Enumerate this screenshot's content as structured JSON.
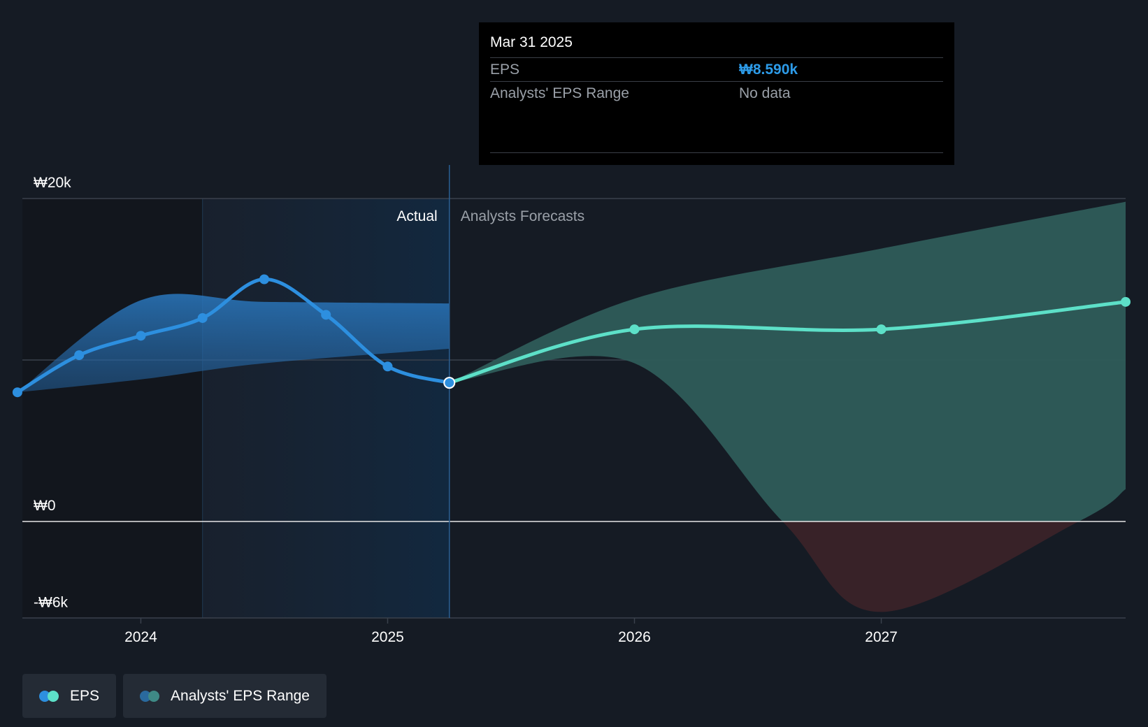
{
  "chart_data": {
    "type": "line",
    "y_tick_labels": [
      "₩20k",
      "₩0",
      "-₩6k"
    ],
    "x_tick_labels": [
      "2024",
      "2025",
      "2026",
      "2027"
    ],
    "ylim": [
      -6000,
      20000
    ],
    "x_range": [
      2023.52,
      2027.99
    ],
    "divider_x": 2025.25,
    "section_labels": {
      "actual": "Actual",
      "forecast": "Analysts Forecasts"
    },
    "series": [
      {
        "name": "EPS",
        "kind": "actual",
        "color": "#2d8fdf",
        "points": [
          {
            "x": 2023.5,
            "y": 8000
          },
          {
            "x": 2023.75,
            "y": 10300
          },
          {
            "x": 2024.0,
            "y": 11500
          },
          {
            "x": 2024.25,
            "y": 12600
          },
          {
            "x": 2024.5,
            "y": 15000
          },
          {
            "x": 2024.75,
            "y": 12800
          },
          {
            "x": 2025.0,
            "y": 9600
          },
          {
            "x": 2025.25,
            "y": 8590
          }
        ]
      },
      {
        "name": "EPS",
        "kind": "forecast",
        "color": "#5de0c8",
        "points": [
          {
            "x": 2025.25,
            "y": 8590
          },
          {
            "x": 2026.0,
            "y": 11900
          },
          {
            "x": 2027.0,
            "y": 11900
          },
          {
            "x": 2027.99,
            "y": 13600
          }
        ]
      }
    ],
    "ranges": [
      {
        "name": "Analysts' EPS Range",
        "kind": "actual",
        "color": "#2d8fdf",
        "upper": [
          {
            "x": 2023.5,
            "y": 8000
          },
          {
            "x": 2024.0,
            "y": 13700
          },
          {
            "x": 2024.5,
            "y": 13600
          },
          {
            "x": 2025.25,
            "y": 13500
          }
        ],
        "lower": [
          {
            "x": 2023.5,
            "y": 8000
          },
          {
            "x": 2024.0,
            "y": 8800
          },
          {
            "x": 2024.5,
            "y": 9800
          },
          {
            "x": 2025.25,
            "y": 10700
          }
        ]
      },
      {
        "name": "Analysts' EPS Range",
        "kind": "forecast",
        "color": "#2e5c5a",
        "upper": [
          {
            "x": 2025.25,
            "y": 8590
          },
          {
            "x": 2026.0,
            "y": 13800
          },
          {
            "x": 2027.0,
            "y": 16900
          },
          {
            "x": 2027.99,
            "y": 19800
          }
        ],
        "lower": [
          {
            "x": 2025.25,
            "y": 8590
          },
          {
            "x": 2026.0,
            "y": 9800
          },
          {
            "x": 2026.6,
            "y": 0
          },
          {
            "x": 2027.0,
            "y": -5600
          },
          {
            "x": 2027.8,
            "y": 0
          },
          {
            "x": 2027.99,
            "y": 2000
          }
        ]
      }
    ],
    "highlight_point": {
      "x": 2025.25,
      "y": 8590
    },
    "legend": [
      "EPS",
      "Analysts' EPS Range"
    ],
    "grid": true
  },
  "tooltip": {
    "date": "Mar 31 2025",
    "rows": [
      {
        "label": "EPS",
        "value": "₩8.590k"
      },
      {
        "label": "Analysts' EPS Range",
        "value": "No data"
      }
    ]
  },
  "legend": {
    "eps": "EPS",
    "range": "Analysts' EPS Range",
    "eps_colors": [
      "#2d8fdf",
      "#5de0c8"
    ],
    "range_colors": [
      "#2a6a9e",
      "#3f8a86"
    ]
  }
}
